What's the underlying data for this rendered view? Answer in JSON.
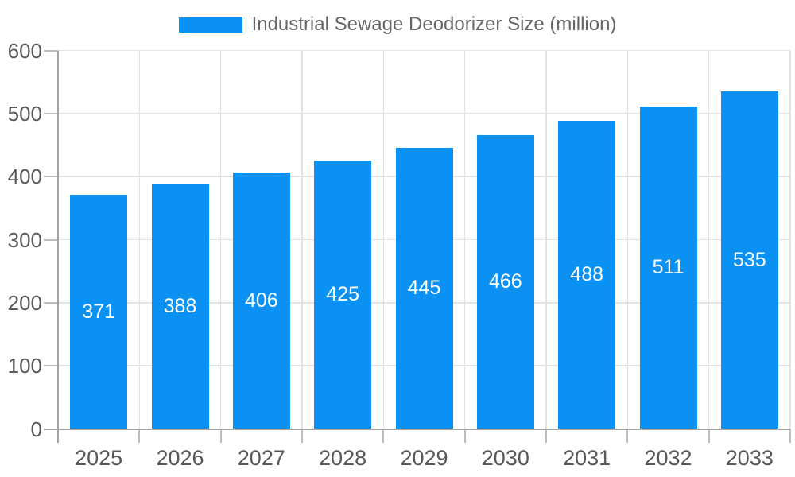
{
  "chart_data": {
    "type": "bar",
    "title": "Industrial Sewage Deodorizer Size (million)",
    "categories": [
      "2025",
      "2026",
      "2027",
      "2028",
      "2029",
      "2030",
      "2031",
      "2032",
      "2033"
    ],
    "values": [
      371,
      388,
      406,
      425,
      445,
      466,
      488,
      511,
      535
    ],
    "xlabel": "",
    "ylabel": "",
    "ylim": [
      0,
      600
    ],
    "yticks": [
      0,
      100,
      200,
      300,
      400,
      500,
      600
    ],
    "grid": true,
    "legend_position": "top",
    "colors": {
      "bar": "#0a91f2",
      "value_label": "#ffffff",
      "grid_line": "#e3e3e3",
      "tick_mark": "#bdbdbd",
      "axis_line": "#a3a3a3",
      "axis_text": "#595959",
      "legend_text": "#666666"
    }
  }
}
